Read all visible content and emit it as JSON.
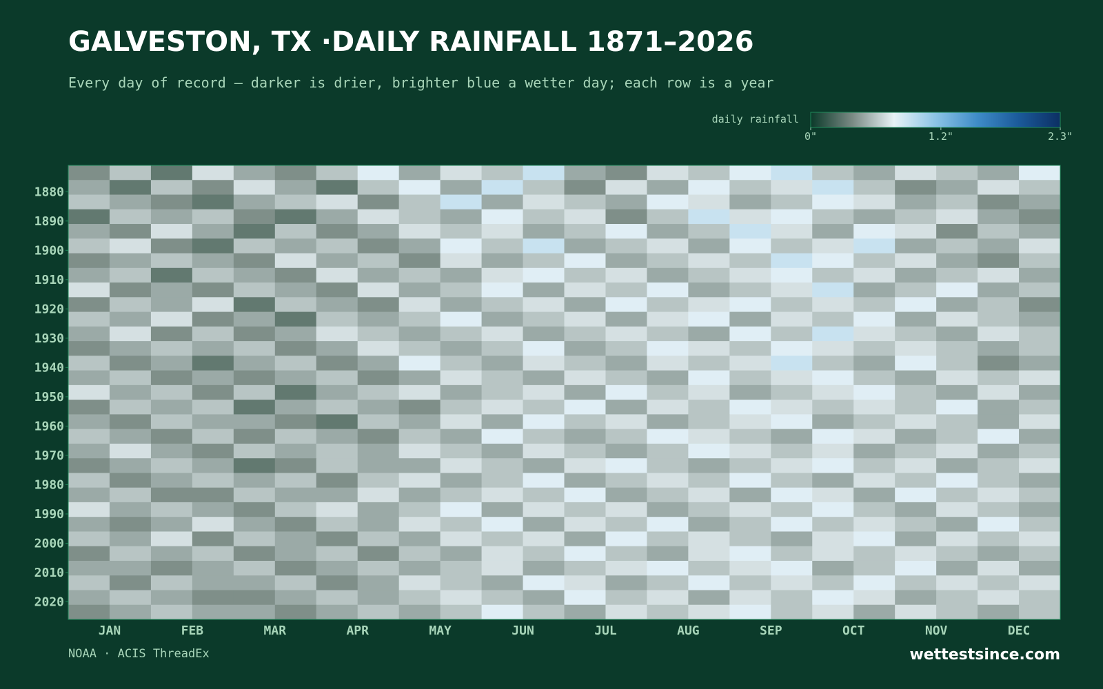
{
  "chart_data": {
    "type": "heatmap",
    "title": "GALVESTON, TX ·DAILY RAINFALL 1871–2026",
    "subtitle": "Every day of record — darker is drier, brighter blue a wetter day; each row is a year",
    "colorbar_label": "daily rainfall",
    "clim": [
      0,
      2.3
    ],
    "cticks": [
      {
        "value": 0,
        "label": "0\""
      },
      {
        "value": 1.2,
        "label": "1.2\""
      },
      {
        "value": 2.3,
        "label": "2.3\""
      }
    ],
    "colors": [
      "#0b3a2a",
      "#7a8a84",
      "#e8f2f6",
      "#8cc4e6",
      "#3f8cc8",
      "#1b5a9a",
      "#0c2f63"
    ],
    "categories": [
      "JAN",
      "FEB",
      "MAR",
      "APR",
      "MAY",
      "JUN",
      "JUL",
      "AUG",
      "SEP",
      "OCT",
      "NOV",
      "DEC"
    ],
    "ylim": [
      1871,
      2026
    ],
    "yticks": [
      1880,
      1890,
      1900,
      1910,
      1920,
      1930,
      1940,
      1950,
      1960,
      1970,
      1980,
      1990,
      2000,
      2010,
      2020
    ],
    "y": [
      1871,
      1876,
      1881,
      1886,
      1891,
      1896,
      1901,
      1906,
      1911,
      1916,
      1921,
      1926,
      1931,
      1936,
      1941,
      1946,
      1951,
      1956,
      1961,
      1966,
      1971,
      1976,
      1981,
      1986,
      1991,
      1996,
      2001,
      2006,
      2011,
      2016,
      2021
    ],
    "values": [
      [
        0.4,
        0.6,
        0.3,
        0.7,
        0.5,
        0.4,
        0.6,
        0.8,
        0.5,
        0.7,
        0.6,
        0.9,
        0.5,
        0.4,
        0.7,
        0.6,
        0.8,
        0.9,
        0.6,
        0.5,
        0.7,
        0.6,
        0.5,
        0.8
      ],
      [
        0.5,
        0.3,
        0.6,
        0.4,
        0.7,
        0.5,
        0.3,
        0.6,
        0.8,
        0.5,
        0.9,
        0.6,
        0.4,
        0.7,
        0.5,
        0.8,
        0.6,
        0.7,
        0.9,
        0.6,
        0.4,
        0.5,
        0.7,
        0.6
      ],
      [
        0.6,
        0.5,
        0.4,
        0.3,
        0.5,
        0.6,
        0.7,
        0.4,
        0.6,
        0.9,
        0.5,
        0.7,
        0.6,
        0.5,
        0.8,
        0.7,
        0.5,
        0.6,
        0.8,
        0.7,
        0.5,
        0.6,
        0.4,
        0.5
      ],
      [
        0.3,
        0.6,
        0.5,
        0.6,
        0.4,
        0.3,
        0.5,
        0.7,
        0.6,
        0.5,
        0.8,
        0.6,
        0.7,
        0.4,
        0.6,
        0.9,
        0.7,
        0.8,
        0.6,
        0.5,
        0.6,
        0.7,
        0.5,
        0.4
      ],
      [
        0.5,
        0.4,
        0.7,
        0.5,
        0.3,
        0.6,
        0.4,
        0.5,
        0.7,
        0.6,
        0.7,
        0.5,
        0.6,
        0.8,
        0.5,
        0.6,
        0.9,
        0.7,
        0.5,
        0.8,
        0.7,
        0.4,
        0.6,
        0.5
      ],
      [
        0.6,
        0.7,
        0.4,
        0.3,
        0.6,
        0.5,
        0.6,
        0.4,
        0.5,
        0.8,
        0.6,
        0.9,
        0.5,
        0.6,
        0.7,
        0.5,
        0.8,
        0.6,
        0.7,
        0.9,
        0.5,
        0.6,
        0.5,
        0.7
      ],
      [
        0.4,
        0.5,
        0.6,
        0.5,
        0.4,
        0.7,
        0.5,
        0.6,
        0.4,
        0.7,
        0.5,
        0.6,
        0.8,
        0.5,
        0.6,
        0.7,
        0.6,
        0.9,
        0.8,
        0.6,
        0.7,
        0.5,
        0.4,
        0.6
      ],
      [
        0.5,
        0.6,
        0.3,
        0.6,
        0.5,
        0.4,
        0.7,
        0.5,
        0.6,
        0.5,
        0.7,
        0.8,
        0.6,
        0.7,
        0.5,
        0.6,
        0.7,
        0.8,
        0.6,
        0.7,
        0.5,
        0.6,
        0.7,
        0.5
      ],
      [
        0.7,
        0.4,
        0.5,
        0.4,
        0.6,
        0.5,
        0.4,
        0.7,
        0.5,
        0.6,
        0.8,
        0.5,
        0.7,
        0.6,
        0.8,
        0.5,
        0.6,
        0.7,
        0.9,
        0.5,
        0.6,
        0.8,
        0.5,
        0.6
      ],
      [
        0.4,
        0.6,
        0.5,
        0.7,
        0.3,
        0.6,
        0.5,
        0.4,
        0.7,
        0.5,
        0.6,
        0.7,
        0.5,
        0.8,
        0.6,
        0.7,
        0.8,
        0.6,
        0.7,
        0.6,
        0.8,
        0.5,
        0.6,
        0.4
      ],
      [
        0.6,
        0.5,
        0.7,
        0.4,
        0.5,
        0.3,
        0.6,
        0.5,
        0.6,
        0.8,
        0.5,
        0.6,
        0.7,
        0.5,
        0.7,
        0.8,
        0.5,
        0.7,
        0.6,
        0.8,
        0.5,
        0.7,
        0.6,
        0.5
      ],
      [
        0.5,
        0.7,
        0.4,
        0.6,
        0.4,
        0.5,
        0.7,
        0.6,
        0.5,
        0.6,
        0.7,
        0.5,
        0.6,
        0.7,
        0.6,
        0.5,
        0.8,
        0.6,
        0.9,
        0.7,
        0.6,
        0.5,
        0.7,
        0.6
      ],
      [
        0.4,
        0.5,
        0.6,
        0.5,
        0.6,
        0.4,
        0.5,
        0.7,
        0.6,
        0.5,
        0.6,
        0.8,
        0.5,
        0.6,
        0.8,
        0.7,
        0.6,
        0.8,
        0.7,
        0.6,
        0.7,
        0.6,
        0.5,
        0.6
      ],
      [
        0.6,
        0.4,
        0.5,
        0.3,
        0.5,
        0.6,
        0.4,
        0.5,
        0.8,
        0.6,
        0.5,
        0.7,
        0.6,
        0.5,
        0.7,
        0.6,
        0.7,
        0.9,
        0.6,
        0.5,
        0.8,
        0.6,
        0.4,
        0.5
      ],
      [
        0.5,
        0.6,
        0.4,
        0.5,
        0.4,
        0.5,
        0.6,
        0.4,
        0.5,
        0.7,
        0.6,
        0.5,
        0.7,
        0.6,
        0.5,
        0.8,
        0.6,
        0.7,
        0.8,
        0.6,
        0.5,
        0.7,
        0.6,
        0.7
      ],
      [
        0.7,
        0.5,
        0.6,
        0.4,
        0.6,
        0.3,
        0.5,
        0.6,
        0.7,
        0.5,
        0.6,
        0.7,
        0.5,
        0.8,
        0.6,
        0.7,
        0.5,
        0.6,
        0.7,
        0.8,
        0.6,
        0.5,
        0.7,
        0.5
      ],
      [
        0.4,
        0.6,
        0.5,
        0.6,
        0.3,
        0.5,
        0.6,
        0.5,
        0.4,
        0.6,
        0.7,
        0.6,
        0.8,
        0.5,
        0.7,
        0.6,
        0.8,
        0.7,
        0.6,
        0.7,
        0.6,
        0.8,
        0.5,
        0.6
      ],
      [
        0.5,
        0.4,
        0.6,
        0.5,
        0.5,
        0.4,
        0.3,
        0.6,
        0.5,
        0.7,
        0.5,
        0.8,
        0.6,
        0.7,
        0.5,
        0.6,
        0.7,
        0.8,
        0.5,
        0.6,
        0.7,
        0.6,
        0.5,
        0.7
      ],
      [
        0.6,
        0.5,
        0.4,
        0.6,
        0.4,
        0.6,
        0.5,
        0.4,
        0.6,
        0.5,
        0.8,
        0.6,
        0.5,
        0.6,
        0.8,
        0.7,
        0.6,
        0.5,
        0.8,
        0.7,
        0.5,
        0.6,
        0.8,
        0.5
      ],
      [
        0.5,
        0.7,
        0.5,
        0.4,
        0.6,
        0.5,
        0.6,
        0.5,
        0.7,
        0.6,
        0.5,
        0.7,
        0.6,
        0.5,
        0.6,
        0.8,
        0.7,
        0.6,
        0.7,
        0.5,
        0.6,
        0.7,
        0.5,
        0.6
      ],
      [
        0.4,
        0.5,
        0.6,
        0.5,
        0.3,
        0.4,
        0.6,
        0.5,
        0.5,
        0.7,
        0.6,
        0.5,
        0.7,
        0.8,
        0.6,
        0.5,
        0.6,
        0.7,
        0.8,
        0.6,
        0.7,
        0.5,
        0.6,
        0.7
      ],
      [
        0.6,
        0.4,
        0.5,
        0.6,
        0.5,
        0.6,
        0.4,
        0.6,
        0.7,
        0.5,
        0.6,
        0.8,
        0.5,
        0.6,
        0.7,
        0.6,
        0.8,
        0.6,
        0.5,
        0.7,
        0.6,
        0.8,
        0.6,
        0.5
      ],
      [
        0.5,
        0.6,
        0.4,
        0.4,
        0.6,
        0.5,
        0.5,
        0.7,
        0.5,
        0.6,
        0.7,
        0.6,
        0.8,
        0.5,
        0.6,
        0.7,
        0.5,
        0.8,
        0.7,
        0.5,
        0.8,
        0.6,
        0.7,
        0.6
      ],
      [
        0.7,
        0.5,
        0.6,
        0.5,
        0.4,
        0.6,
        0.7,
        0.5,
        0.6,
        0.8,
        0.5,
        0.7,
        0.6,
        0.7,
        0.5,
        0.6,
        0.7,
        0.6,
        0.8,
        0.6,
        0.5,
        0.7,
        0.6,
        0.5
      ],
      [
        0.5,
        0.4,
        0.5,
        0.7,
        0.5,
        0.4,
        0.6,
        0.5,
        0.7,
        0.6,
        0.8,
        0.5,
        0.7,
        0.6,
        0.8,
        0.5,
        0.6,
        0.8,
        0.6,
        0.7,
        0.6,
        0.5,
        0.8,
        0.6
      ],
      [
        0.6,
        0.5,
        0.7,
        0.4,
        0.6,
        0.5,
        0.4,
        0.6,
        0.5,
        0.7,
        0.6,
        0.7,
        0.5,
        0.8,
        0.6,
        0.7,
        0.6,
        0.5,
        0.7,
        0.8,
        0.5,
        0.7,
        0.6,
        0.7
      ],
      [
        0.4,
        0.6,
        0.5,
        0.6,
        0.4,
        0.5,
        0.6,
        0.4,
        0.6,
        0.5,
        0.7,
        0.6,
        0.8,
        0.6,
        0.5,
        0.7,
        0.8,
        0.6,
        0.7,
        0.6,
        0.7,
        0.6,
        0.5,
        0.6
      ],
      [
        0.5,
        0.5,
        0.4,
        0.5,
        0.6,
        0.4,
        0.5,
        0.6,
        0.5,
        0.6,
        0.7,
        0.5,
        0.6,
        0.7,
        0.8,
        0.6,
        0.7,
        0.8,
        0.5,
        0.6,
        0.8,
        0.5,
        0.7,
        0.5
      ],
      [
        0.6,
        0.4,
        0.6,
        0.5,
        0.5,
        0.6,
        0.4,
        0.5,
        0.7,
        0.6,
        0.5,
        0.8,
        0.7,
        0.5,
        0.6,
        0.8,
        0.6,
        0.7,
        0.6,
        0.8,
        0.6,
        0.7,
        0.6,
        0.7
      ],
      [
        0.5,
        0.6,
        0.5,
        0.4,
        0.4,
        0.5,
        0.6,
        0.5,
        0.6,
        0.7,
        0.6,
        0.5,
        0.8,
        0.6,
        0.7,
        0.5,
        0.7,
        0.6,
        0.8,
        0.7,
        0.5,
        0.6,
        0.7,
        0.6
      ],
      [
        0.4,
        0.5,
        0.6,
        0.5,
        0.5,
        0.4,
        0.5,
        0.6,
        0.5,
        0.6,
        0.8,
        0.6,
        0.5,
        0.7,
        0.6,
        0.7,
        0.8,
        0.6,
        0.7,
        0.5,
        0.7,
        0.6,
        0.5,
        0.6
      ]
    ]
  },
  "footer": {
    "source": "NOAA · ACIS ThreadEx",
    "brand": "wettestsince.com"
  }
}
